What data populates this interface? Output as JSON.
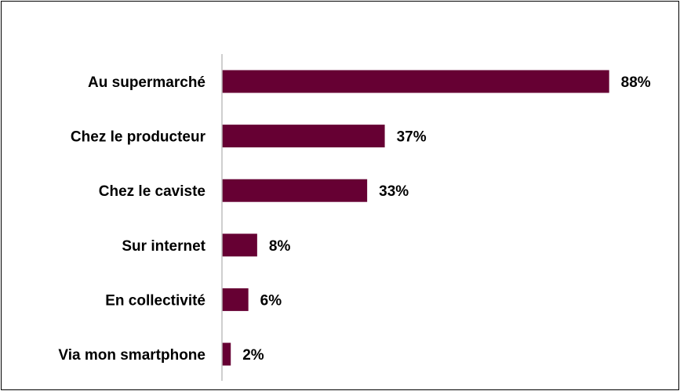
{
  "chart_data": {
    "type": "bar",
    "orientation": "horizontal",
    "categories": [
      "Au supermarché",
      "Chez le producteur",
      "Chez le caviste",
      "Sur internet",
      "En collectivité",
      "Via mon smartphone"
    ],
    "values": [
      88,
      37,
      33,
      8,
      6,
      2
    ],
    "value_labels": [
      "88%",
      "37%",
      "33%",
      "8%",
      "6%",
      "2%"
    ],
    "xlim": [
      0,
      100
    ],
    "grid": false,
    "bar_color": "#660033",
    "axis_color": "#bfbfbf"
  }
}
